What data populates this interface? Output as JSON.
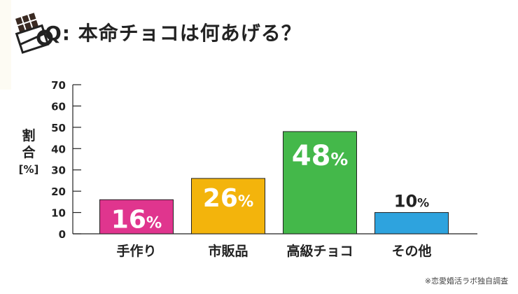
{
  "title": "Q: 本命チョコは何あげる？",
  "source_note": "※恋愛婚活ラボ独自調査",
  "chart_data": {
    "type": "bar",
    "categories": [
      "手作り",
      "市販品",
      "高級チョコ",
      "その他"
    ],
    "values": [
      16,
      26,
      48,
      10
    ],
    "value_labels": [
      "16%",
      "26%",
      "48%",
      "10%"
    ],
    "ylabel": "割合",
    "ylabel_unit": "[%]",
    "ylim": [
      0,
      70
    ],
    "yticks": [
      0,
      10,
      20,
      30,
      40,
      50,
      60,
      70
    ],
    "colors": [
      "#e0358e",
      "#f3b40c",
      "#44b84a",
      "#2ea3de"
    ],
    "label_inside": [
      true,
      true,
      true,
      false
    ],
    "grid": false,
    "legend": "none"
  },
  "icon": "chocolate-bar-icon"
}
